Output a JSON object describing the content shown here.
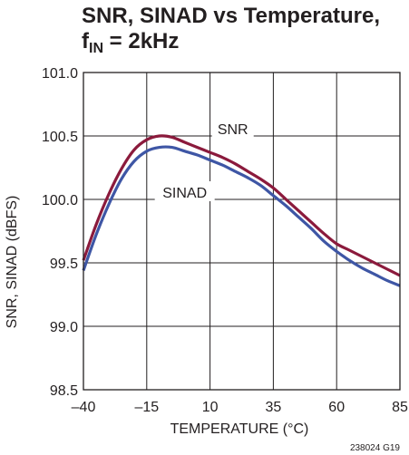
{
  "title": {
    "line1": "SNR, SINAD vs Temperature,",
    "line2_base": "f",
    "line2_sub": "IN",
    "line2_rest": " = 2kHz"
  },
  "figure_id": "238024 G19",
  "colors": {
    "snr": "#8b1a3c",
    "sinad": "#3e56a5",
    "grid": "#231f20"
  },
  "chart_data": {
    "type": "line",
    "title": "SNR, SINAD vs Temperature, fIN = 2kHz",
    "xlabel": "TEMPERATURE (°C)",
    "ylabel": "SNR, SINAD (dBFS)",
    "xlim": [
      -40,
      85
    ],
    "ylim": [
      98.5,
      101.0
    ],
    "x_ticks": [
      -40,
      -15,
      10,
      35,
      60,
      85
    ],
    "x_tick_labels": [
      "–40",
      "–15",
      "10",
      "35",
      "60",
      "85"
    ],
    "y_ticks": [
      98.5,
      99.0,
      99.5,
      100.0,
      100.5,
      101.0
    ],
    "y_tick_labels": [
      "98.5",
      "99.0",
      "99.5",
      "100.0",
      "100.5",
      "101.0"
    ],
    "grid": true,
    "series": [
      {
        "name": "SNR",
        "x": [
          -40,
          -35,
          -30,
          -25,
          -20,
          -15,
          -10,
          -5,
          0,
          5,
          10,
          15,
          20,
          25,
          30,
          35,
          40,
          45,
          50,
          55,
          60,
          65,
          70,
          75,
          80,
          85
        ],
        "y": [
          99.52,
          99.8,
          100.04,
          100.24,
          100.39,
          100.47,
          100.5,
          100.49,
          100.45,
          100.41,
          100.37,
          100.33,
          100.28,
          100.22,
          100.16,
          100.09,
          100.0,
          99.91,
          99.82,
          99.73,
          99.65,
          99.6,
          99.55,
          99.5,
          99.45,
          99.4
        ]
      },
      {
        "name": "SINAD",
        "x": [
          -40,
          -35,
          -30,
          -25,
          -20,
          -15,
          -10,
          -5,
          0,
          5,
          10,
          15,
          20,
          25,
          30,
          35,
          40,
          45,
          50,
          55,
          60,
          65,
          70,
          75,
          80,
          85
        ],
        "y": [
          99.44,
          99.72,
          99.96,
          100.16,
          100.3,
          100.38,
          100.41,
          100.41,
          100.38,
          100.35,
          100.31,
          100.27,
          100.22,
          100.17,
          100.11,
          100.03,
          99.95,
          99.86,
          99.77,
          99.67,
          99.59,
          99.52,
          99.46,
          99.41,
          99.36,
          99.32
        ]
      }
    ],
    "annotations": [
      {
        "text": "SNR",
        "x": 19,
        "y": 100.55
      },
      {
        "text": "SINAD",
        "x": 0,
        "y": 100.05
      }
    ]
  }
}
